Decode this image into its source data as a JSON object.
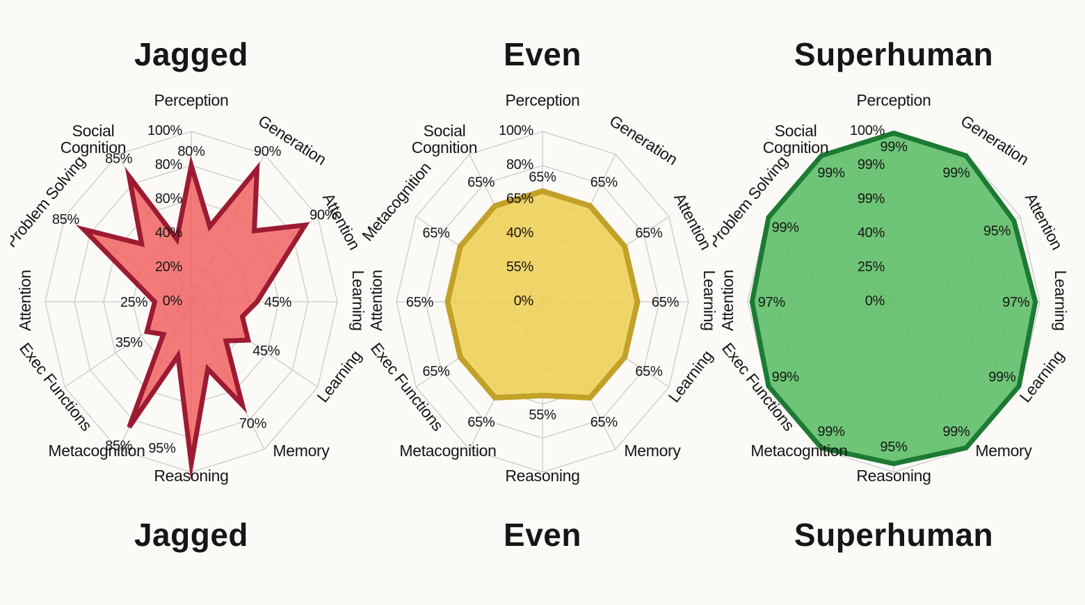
{
  "page": {
    "background": "#fbfaf7",
    "text_color": "#161616",
    "grid_color": "#c9c9c9"
  },
  "chart_data": [
    {
      "id": "jagged",
      "type": "radar",
      "title": "Jagged",
      "caption": "Jagged",
      "categories": [
        "Perception",
        "Generation",
        "Attention",
        "Learning",
        "Learning",
        "Memory",
        "Reasoning",
        "Metacognition",
        "Exec Functions",
        "Attention",
        "Problem Solving",
        "Social Cognition"
      ],
      "values": [
        80,
        90,
        90,
        45,
        45,
        70,
        95,
        85,
        35,
        25,
        85,
        85
      ],
      "value_labels": [
        "80%",
        "90%",
        "90%",
        "45%",
        "45%",
        "70%",
        "95%",
        "85%",
        "35%",
        "25%",
        "85%",
        "85%"
      ],
      "radial_tick_labels": [
        "100%",
        "80%",
        "80%",
        "40%",
        "20%",
        "0%"
      ],
      "rlim": [
        0,
        100
      ],
      "grid": "on",
      "outline_polar": [
        [
          0,
          80
        ],
        [
          16,
          46
        ],
        [
          30,
          90
        ],
        [
          46,
          60
        ],
        [
          60,
          90
        ],
        [
          90,
          45
        ],
        [
          104,
          36
        ],
        [
          120,
          45
        ],
        [
          134,
          33
        ],
        [
          150,
          70
        ],
        [
          164,
          41
        ],
        [
          180,
          95
        ],
        [
          196,
          33
        ],
        [
          210,
          85
        ],
        [
          225,
          27
        ],
        [
          240,
          35
        ],
        [
          270,
          25
        ],
        [
          300,
          85
        ],
        [
          315,
          48
        ],
        [
          330,
          85
        ],
        [
          345,
          38
        ]
      ],
      "style": {
        "fill": "#f16363",
        "fill_opacity": 0.85,
        "stroke": "#9c1b32",
        "stroke_width": 7,
        "grid_color": "#c9c9c9",
        "labels_inside": false,
        "value_label_offset": 30,
        "reasoning_label_offset": [
          -42,
          -16
        ]
      }
    },
    {
      "id": "even",
      "type": "radar",
      "title": "Even",
      "caption": "Even",
      "categories": [
        "Perception",
        "Generation",
        "Attention",
        "Learning",
        "Learning",
        "Memory",
        "Reasoning",
        "Metacognition",
        "Exec Functions",
        "Attention",
        "Metacognition",
        "Social Cognition"
      ],
      "values": [
        65,
        65,
        65,
        65,
        65,
        65,
        55,
        65,
        65,
        65,
        65,
        65
      ],
      "value_labels": [
        "65%",
        "65%",
        "65%",
        "65%",
        "65%",
        "65%",
        "55%",
        "65%",
        "65%",
        "65%",
        "65%",
        "65%"
      ],
      "radial_tick_labels": [
        "100%",
        "80%",
        "65%",
        "40%",
        "55%",
        "0%"
      ],
      "rlim": [
        0,
        100
      ],
      "grid": "on",
      "outline_polar": [
        [
          0,
          65
        ],
        [
          30,
          65
        ],
        [
          60,
          65
        ],
        [
          90,
          65
        ],
        [
          120,
          65
        ],
        [
          150,
          65
        ],
        [
          180,
          55
        ],
        [
          210,
          65
        ],
        [
          240,
          65
        ],
        [
          270,
          65
        ],
        [
          300,
          65
        ],
        [
          330,
          65
        ]
      ],
      "style": {
        "fill": "#eecf55",
        "fill_opacity": 0.88,
        "stroke": "#c2a128",
        "stroke_width": 8,
        "grid_color": "#c9c9c9",
        "labels_inside": false,
        "value_label_offset": 40,
        "reasoning_label_offset": [
          0,
          34
        ]
      }
    },
    {
      "id": "superhuman",
      "type": "radar",
      "title": "Superhuman",
      "caption": "Superhuman",
      "categories": [
        "Perception",
        "Generation",
        "Attention",
        "Learning",
        "Learning",
        "Memory",
        "Reasoning",
        "Metacognition",
        "Exec Functions",
        "Attention",
        "Problem Solving",
        "Social Cognition"
      ],
      "values": [
        99,
        99,
        95,
        97,
        99,
        99,
        95,
        99,
        99,
        97,
        99,
        99
      ],
      "value_labels": [
        "99%",
        "99%",
        "95%",
        "97%",
        "99%",
        "99%",
        "95%",
        "99%",
        "99%",
        "97%",
        "99%",
        "99%"
      ],
      "radial_tick_labels": [
        "100%",
        "99%",
        "99%",
        "40%",
        "25%",
        "0%"
      ],
      "rlim": [
        0,
        100
      ],
      "grid": "on",
      "outline_polar": [
        [
          0,
          99
        ],
        [
          30,
          99
        ],
        [
          60,
          95
        ],
        [
          90,
          97
        ],
        [
          120,
          99
        ],
        [
          150,
          99
        ],
        [
          180,
          95
        ],
        [
          210,
          99
        ],
        [
          240,
          99
        ],
        [
          270,
          97
        ],
        [
          300,
          99
        ],
        [
          330,
          99
        ]
      ],
      "style": {
        "fill": "#5ebf68",
        "fill_opacity": 0.9,
        "stroke": "#1c7a33",
        "stroke_width": 7,
        "grid_color": "#c9c9c9",
        "labels_inside": true,
        "value_label_offset": -28,
        "reasoning_label_offset": [
          0,
          -18
        ]
      }
    }
  ]
}
